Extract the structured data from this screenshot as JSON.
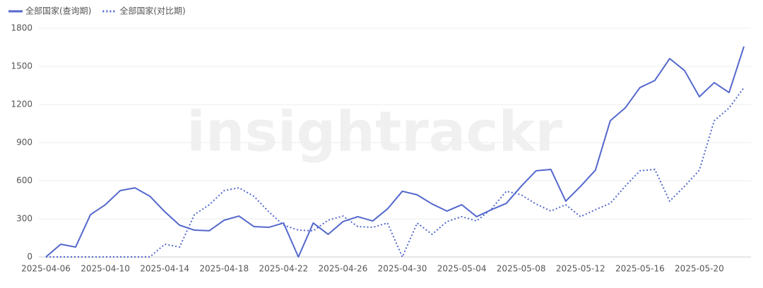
{
  "chart_data": {
    "type": "line",
    "watermark": "insightrackr",
    "x": [
      "2025-04-06",
      null,
      null,
      null,
      "2025-04-10",
      null,
      null,
      null,
      "2025-04-14",
      null,
      null,
      null,
      "2025-04-18",
      null,
      null,
      null,
      "2025-04-22",
      null,
      null,
      null,
      "2025-04-26",
      null,
      null,
      null,
      "2025-04-30",
      null,
      null,
      null,
      "2025-05-04",
      null,
      null,
      null,
      "2025-05-08",
      null,
      null,
      null,
      "2025-05-12",
      null,
      null,
      null,
      "2025-05-16",
      null,
      null,
      null,
      "2025-05-20",
      null,
      null,
      null
    ],
    "series": [
      {
        "name": "全部国家(查询期)",
        "color": "#5468cc",
        "style": "solid",
        "values": [
          0,
          100,
          78,
          333,
          411,
          522,
          544,
          478,
          356,
          250,
          211,
          206,
          289,
          322,
          239,
          233,
          267,
          0,
          267,
          178,
          278,
          317,
          283,
          378,
          517,
          489,
          417,
          361,
          411,
          317,
          372,
          422,
          556,
          678,
          689,
          439,
          556,
          683,
          1072,
          1172,
          1333,
          1389,
          1561,
          1467,
          1261,
          1372,
          1294,
          1656
        ]
      },
      {
        "name": "全部国家(对比期)",
        "color": "#5468cc",
        "style": "dotted",
        "values": [
          0,
          0,
          0,
          0,
          0,
          0,
          0,
          0,
          100,
          78,
          333,
          411,
          522,
          544,
          478,
          356,
          250,
          211,
          206,
          289,
          322,
          239,
          233,
          267,
          0,
          267,
          178,
          278,
          317,
          283,
          378,
          517,
          489,
          417,
          361,
          411,
          317,
          372,
          422,
          556,
          678,
          689,
          439,
          556,
          683,
          1072,
          1172,
          1333
        ]
      }
    ],
    "ylim": [
      0,
      1800
    ],
    "yticks": [
      0,
      300,
      600,
      900,
      1200,
      1500,
      1800
    ],
    "grid": true,
    "legend": "top-left"
  }
}
